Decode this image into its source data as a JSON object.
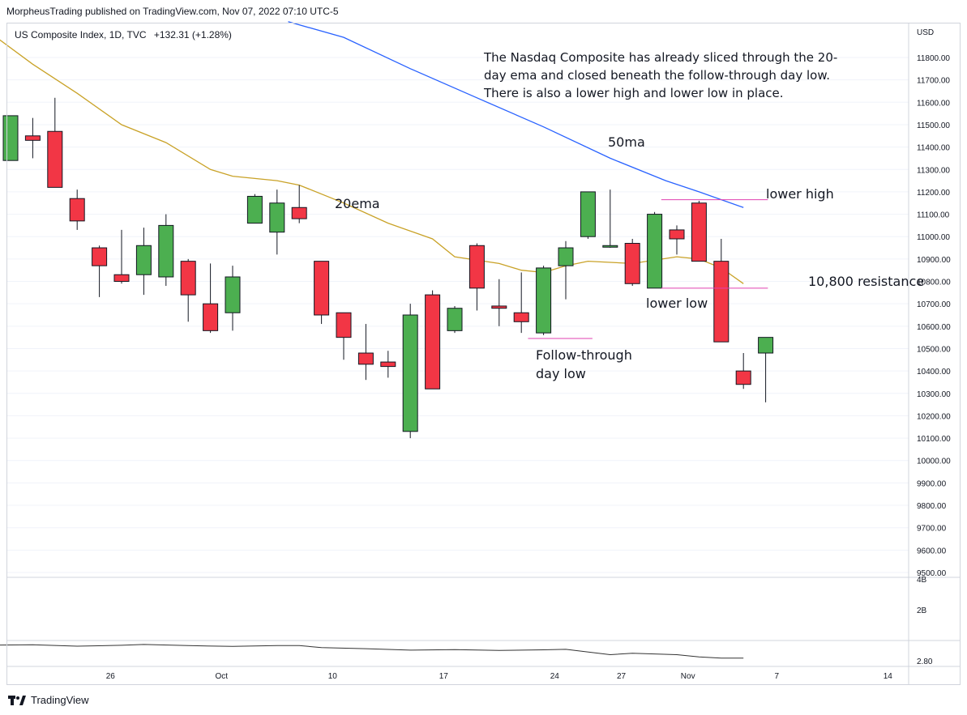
{
  "header": {
    "published_text": "MorpheusTrading published on TradingView.com, Nov 07, 2022 07:10 UTC-5"
  },
  "legend": {
    "symbol": "US Composite Index, 1D, TVC",
    "change": "+132.31 (+1.28%)"
  },
  "annotations": {
    "note": "The Nasdaq Composite has already sliced through the 20-day ema and closed beneath the follow-through day low.  There is also a lower high and lower low in place.",
    "ma50": "50ma",
    "ema20": "20ema",
    "lower_high": "lower high",
    "resistance": "10,800 resistance",
    "lower_low": "lower low",
    "ftd_line1": "Follow-through",
    "ftd_line2": "day low"
  },
  "footer": {
    "brand": "TradingView"
  },
  "colors": {
    "up": "#4caf50",
    "down": "#f23645",
    "ma50": "#2962ff",
    "ema20": "#c9a227",
    "hline": "#e040b0",
    "volume_line": "#333333",
    "grid": "#f0f3fa"
  },
  "chart_data": {
    "type": "candlestick",
    "currency": "USD",
    "price_ticks": [
      9500,
      9600,
      9700,
      9800,
      9900,
      10000,
      10100,
      10200,
      10300,
      10400,
      10500,
      10600,
      10700,
      10800,
      10900,
      11000,
      11100,
      11200,
      11300,
      11400,
      11500,
      11600,
      11700,
      11800
    ],
    "price_tick_labels": [
      "9500.00",
      "9600.00",
      "9700.00",
      "9800.00",
      "9900.00",
      "10000.00",
      "10100.00",
      "10200.00",
      "10300.00",
      "10400.00",
      "10500.00",
      "10600.00",
      "10700.00",
      "10800.00",
      "10900.00",
      "11000.00",
      "11100.00",
      "11200.00",
      "11300.00",
      "11400.00",
      "11500.00",
      "11600.00",
      "11700.00",
      "11800.00"
    ],
    "volume_tick_labels": [
      "4B",
      "2B"
    ],
    "indicator_tick_label": "2.80",
    "x_tick_labels": [
      {
        "label": "26",
        "index": 4.5
      },
      {
        "label": "Oct",
        "index": 9.5
      },
      {
        "label": "10",
        "index": 14.5
      },
      {
        "label": "17",
        "index": 19.5
      },
      {
        "label": "24",
        "index": 24.5
      },
      {
        "label": "27",
        "index": 27.5
      },
      {
        "label": "Nov",
        "index": 30.5
      },
      {
        "label": "7",
        "index": 34.5
      },
      {
        "label": "14",
        "index": 39.5
      }
    ],
    "candles": [
      {
        "o": 11340,
        "h": 11540,
        "l": 11340,
        "c": 11540
      },
      {
        "o": 11450,
        "h": 11530,
        "l": 11350,
        "c": 11430
      },
      {
        "o": 11470,
        "h": 11620,
        "l": 11220,
        "c": 11220
      },
      {
        "o": 11170,
        "h": 11210,
        "l": 11030,
        "c": 11070
      },
      {
        "o": 10950,
        "h": 10960,
        "l": 10730,
        "c": 10870
      },
      {
        "o": 10830,
        "h": 11030,
        "l": 10790,
        "c": 10800
      },
      {
        "o": 10830,
        "h": 11040,
        "l": 10740,
        "c": 10960
      },
      {
        "o": 10820,
        "h": 11100,
        "l": 10780,
        "c": 11050
      },
      {
        "o": 10890,
        "h": 10900,
        "l": 10620,
        "c": 10740
      },
      {
        "o": 10700,
        "h": 10880,
        "l": 10570,
        "c": 10580
      },
      {
        "o": 10660,
        "h": 10870,
        "l": 10580,
        "c": 10820
      },
      {
        "o": 11060,
        "h": 11190,
        "l": 11060,
        "c": 11180
      },
      {
        "o": 11020,
        "h": 11210,
        "l": 10920,
        "c": 11150
      },
      {
        "o": 11130,
        "h": 11230,
        "l": 11060,
        "c": 11080
      },
      {
        "o": 10890,
        "h": 10890,
        "l": 10610,
        "c": 10650
      },
      {
        "o": 10660,
        "h": 10660,
        "l": 10450,
        "c": 10550
      },
      {
        "o": 10480,
        "h": 10610,
        "l": 10360,
        "c": 10430
      },
      {
        "o": 10440,
        "h": 10490,
        "l": 10370,
        "c": 10420
      },
      {
        "o": 10130,
        "h": 10700,
        "l": 10100,
        "c": 10650
      },
      {
        "o": 10740,
        "h": 10760,
        "l": 10320,
        "c": 10320
      },
      {
        "o": 10580,
        "h": 10690,
        "l": 10570,
        "c": 10680
      },
      {
        "o": 10960,
        "h": 10970,
        "l": 10670,
        "c": 10770
      },
      {
        "o": 10690,
        "h": 10810,
        "l": 10600,
        "c": 10680
      },
      {
        "o": 10660,
        "h": 10840,
        "l": 10570,
        "c": 10620
      },
      {
        "o": 10570,
        "h": 10870,
        "l": 10560,
        "c": 10860
      },
      {
        "o": 10870,
        "h": 10980,
        "l": 10720,
        "c": 10950
      },
      {
        "o": 11000,
        "h": 11200,
        "l": 10990,
        "c": 11200
      },
      {
        "o": 10960,
        "h": 11210,
        "l": 10950,
        "c": 10960
      },
      {
        "o": 10970,
        "h": 10990,
        "l": 10780,
        "c": 10790
      },
      {
        "o": 10770,
        "h": 11110,
        "l": 10770,
        "c": 11100
      },
      {
        "o": 11030,
        "h": 11050,
        "l": 10920,
        "c": 10990
      },
      {
        "o": 11150,
        "h": 11160,
        "l": 10890,
        "c": 10890
      },
      {
        "o": 10890,
        "h": 10990,
        "l": 10530,
        "c": 10530
      },
      {
        "o": 10400,
        "h": 10480,
        "l": 10320,
        "c": 10340
      },
      {
        "o": 10480,
        "h": 10550,
        "l": 10260,
        "c": 10550
      }
    ],
    "ma50": [
      {
        "i": 12.5,
        "v": 11960
      },
      {
        "i": 15,
        "v": 11890
      },
      {
        "i": 18,
        "v": 11750
      },
      {
        "i": 21,
        "v": 11620
      },
      {
        "i": 24,
        "v": 11490
      },
      {
        "i": 27,
        "v": 11350
      },
      {
        "i": 29.5,
        "v": 11250
      },
      {
        "i": 31,
        "v": 11200
      },
      {
        "i": 33,
        "v": 11130
      }
    ],
    "ema20": [
      {
        "i": -0.5,
        "v": 11880
      },
      {
        "i": 1,
        "v": 11770
      },
      {
        "i": 3,
        "v": 11640
      },
      {
        "i": 5,
        "v": 11500
      },
      {
        "i": 7,
        "v": 11420
      },
      {
        "i": 9,
        "v": 11300
      },
      {
        "i": 10,
        "v": 11270
      },
      {
        "i": 12,
        "v": 11250
      },
      {
        "i": 13,
        "v": 11230
      },
      {
        "i": 15,
        "v": 11150
      },
      {
        "i": 17,
        "v": 11060
      },
      {
        "i": 19,
        "v": 10990
      },
      {
        "i": 20,
        "v": 10910
      },
      {
        "i": 22,
        "v": 10880
      },
      {
        "i": 23,
        "v": 10850
      },
      {
        "i": 24,
        "v": 10840
      },
      {
        "i": 25,
        "v": 10870
      },
      {
        "i": 26,
        "v": 10890
      },
      {
        "i": 28,
        "v": 10880
      },
      {
        "i": 30,
        "v": 10910
      },
      {
        "i": 31,
        "v": 10900
      },
      {
        "i": 32,
        "v": 10860
      },
      {
        "i": 33,
        "v": 10790
      }
    ],
    "horizontal_lines": [
      {
        "name": "lower-high-line",
        "price": 11165,
        "from": 29.3,
        "to": 34.1
      },
      {
        "name": "resistance-line",
        "price": 10770,
        "from": 29.3,
        "to": 34.1
      },
      {
        "name": "ftd-low-line",
        "price": 10545,
        "from": 23.3,
        "to": 26.2
      }
    ],
    "indicator": [
      {
        "i": -0.5,
        "v": 0.6
      },
      {
        "i": 1,
        "v": 0.62
      },
      {
        "i": 3,
        "v": 0.5
      },
      {
        "i": 5,
        "v": 0.58
      },
      {
        "i": 6,
        "v": 0.65
      },
      {
        "i": 8,
        "v": 0.55
      },
      {
        "i": 10,
        "v": 0.48
      },
      {
        "i": 12,
        "v": 0.55
      },
      {
        "i": 13,
        "v": 0.55
      },
      {
        "i": 14,
        "v": 0.38
      },
      {
        "i": 16,
        "v": 0.28
      },
      {
        "i": 18,
        "v": 0.15
      },
      {
        "i": 20,
        "v": 0.2
      },
      {
        "i": 22,
        "v": 0.12
      },
      {
        "i": 24,
        "v": 0.18
      },
      {
        "i": 25,
        "v": 0.22
      },
      {
        "i": 27,
        "v": -0.25
      },
      {
        "i": 28,
        "v": -0.12
      },
      {
        "i": 30,
        "v": -0.25
      },
      {
        "i": 31,
        "v": -0.45
      },
      {
        "i": 32,
        "v": -0.55
      },
      {
        "i": 33,
        "v": -0.55
      }
    ]
  }
}
